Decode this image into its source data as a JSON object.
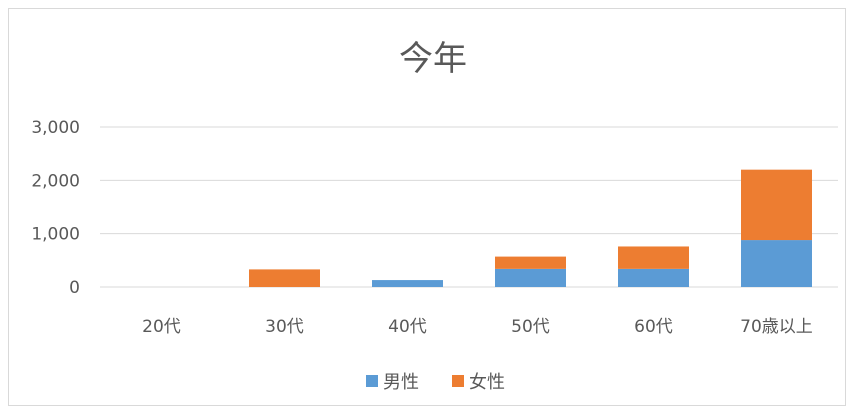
{
  "chart_data": {
    "type": "bar",
    "stacked": true,
    "title": "今年",
    "categories": [
      "20代",
      "30代",
      "40代",
      "50代",
      "60代",
      "70歳以上"
    ],
    "series": [
      {
        "name": "男性",
        "color": "#5b9bd5",
        "values": [
          0,
          0,
          130,
          340,
          340,
          880
        ]
      },
      {
        "name": "女性",
        "color": "#ed7d31",
        "values": [
          0,
          330,
          0,
          230,
          420,
          1320
        ]
      }
    ],
    "ylim": [
      0,
      3000
    ],
    "yticks": [
      0,
      1000,
      2000,
      3000
    ],
    "ytick_labels": [
      "0",
      "1,000",
      "2,000",
      "3,000"
    ],
    "grid": true,
    "legend_position": "bottom"
  }
}
